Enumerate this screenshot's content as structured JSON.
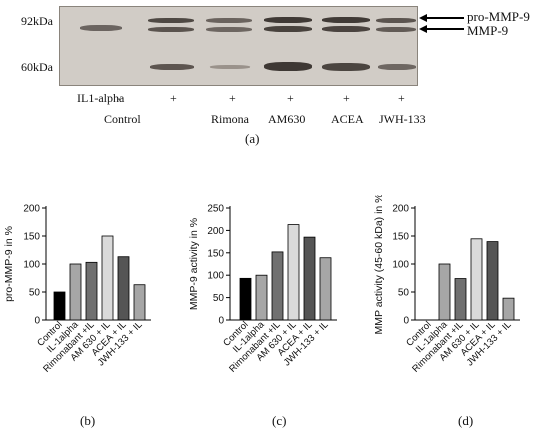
{
  "western_blot": {
    "markers": [
      "92kDa",
      "60kDa"
    ],
    "band_labels": [
      "pro-MMP-9",
      "MMP-9"
    ],
    "row_label": "IL1-alpha",
    "il_treatment": [
      "-",
      "+",
      "+",
      "+",
      "+",
      "+"
    ],
    "lanes": [
      "Control",
      "",
      "Rimona",
      "AM630",
      "ACEA",
      "JWH-133"
    ],
    "caption": "(a)"
  },
  "chart_data": [
    {
      "type": "bar",
      "ylabel": "pro-MMP-9 in %",
      "ylim": [
        0,
        200
      ],
      "yticks": [
        0,
        50,
        100,
        150,
        200
      ],
      "categories": [
        "Control",
        "IL-1alpha",
        "Rimonabant +IL",
        "AM 630 + IL",
        "ACEA + IL",
        "JWH-133 + IL"
      ],
      "values": [
        50,
        100,
        103,
        150,
        113,
        63
      ],
      "colors": [
        "#000000",
        "#a6a6a6",
        "#707070",
        "#dadada",
        "#555555",
        "#a6a6a6"
      ],
      "caption": "(b)"
    },
    {
      "type": "bar",
      "ylabel": "MMP-9 activity in %",
      "ylim": [
        0,
        250
      ],
      "yticks": [
        0,
        50,
        100,
        150,
        200,
        250
      ],
      "categories": [
        "Control",
        "IL-1alpha",
        "Rimonabant +IL",
        "AM 630 + IL",
        "ACEA + IL",
        "JWH-133 + IL"
      ],
      "values": [
        93,
        100,
        152,
        213,
        185,
        139
      ],
      "colors": [
        "#000000",
        "#a6a6a6",
        "#707070",
        "#dadada",
        "#555555",
        "#a6a6a6"
      ],
      "caption": "(c)"
    },
    {
      "type": "bar",
      "ylabel": "MMP activity (45-60 kDa) in %",
      "ylim": [
        0,
        200
      ],
      "yticks": [
        0,
        50,
        100,
        150,
        200
      ],
      "categories": [
        "Control",
        "IL-1alpha",
        "Rimonabant +IL",
        "AM 630 + IL",
        "ACEA + IL",
        "JWH-133 + IL"
      ],
      "values": [
        0,
        100,
        74,
        145,
        140,
        39
      ],
      "colors": [
        "#000000",
        "#a6a6a6",
        "#707070",
        "#dadada",
        "#555555",
        "#a6a6a6"
      ],
      "caption": "(d)"
    }
  ]
}
